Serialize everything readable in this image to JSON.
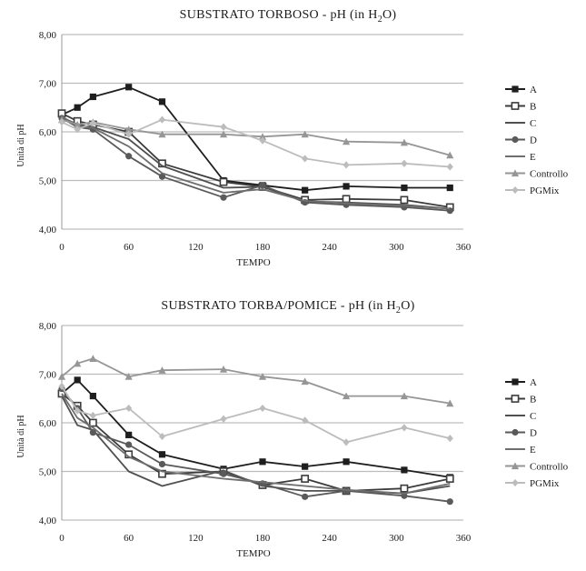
{
  "chart_data": [
    {
      "type": "line",
      "title": "SUBSTRATO TORBOSO - pH (in H",
      "title_sub": "2",
      "title_tail": "O)",
      "xlabel": "TEMPO",
      "ylabel": "Unità di pH",
      "ylim": [
        4,
        8
      ],
      "xlim": [
        0,
        360
      ],
      "y_ticks": [
        "4,00",
        "5,00",
        "6,00",
        "7,00",
        "8,00"
      ],
      "x_ticks": [
        "0",
        "60",
        "120",
        "180",
        "240",
        "300",
        "360"
      ],
      "grid": true,
      "legend_position": "right",
      "x": [
        0,
        14,
        28,
        60,
        90,
        145,
        180,
        218,
        255,
        307,
        348
      ],
      "series": [
        {
          "name": "A",
          "color": "#1e1e1e",
          "marker": "square",
          "values": [
            6.35,
            6.5,
            6.72,
            6.92,
            6.62,
            5.0,
            4.9,
            4.8,
            4.88,
            4.85,
            4.85
          ]
        },
        {
          "name": "B",
          "color": "#3c3c3c",
          "marker": "square-open",
          "values": [
            6.38,
            6.22,
            6.15,
            6.0,
            5.35,
            4.97,
            4.87,
            4.6,
            4.62,
            4.6,
            4.45
          ]
        },
        {
          "name": "C",
          "color": "#505050",
          "marker": "none",
          "values": [
            6.3,
            6.15,
            6.1,
            5.85,
            5.3,
            4.85,
            4.87,
            4.57,
            4.55,
            4.5,
            4.42
          ]
        },
        {
          "name": "D",
          "color": "#5a5a5a",
          "marker": "circle",
          "values": [
            6.28,
            6.1,
            6.05,
            5.5,
            5.08,
            4.65,
            4.9,
            4.55,
            4.5,
            4.45,
            4.38
          ]
        },
        {
          "name": "E",
          "color": "#6e6e6e",
          "marker": "none",
          "values": [
            6.32,
            6.12,
            6.08,
            5.7,
            5.15,
            4.75,
            4.82,
            4.58,
            4.53,
            4.48,
            4.42
          ]
        },
        {
          "name": "Controllo",
          "color": "#969696",
          "marker": "triangle",
          "values": [
            6.25,
            6.15,
            6.2,
            6.05,
            5.95,
            5.95,
            5.9,
            5.95,
            5.8,
            5.78,
            5.52
          ]
        },
        {
          "name": "PGMix",
          "color": "#bcbcbc",
          "marker": "diamond",
          "values": [
            6.2,
            6.05,
            6.18,
            5.95,
            6.25,
            6.1,
            5.82,
            5.45,
            5.32,
            5.35,
            5.28
          ]
        }
      ]
    },
    {
      "type": "line",
      "title": "SUBSTRATO TORBA/POMICE - pH (in H",
      "title_sub": "2",
      "title_tail": "O)",
      "xlabel": "TEMPO",
      "ylabel": "Unità di pH",
      "ylim": [
        4,
        8
      ],
      "xlim": [
        0,
        360
      ],
      "y_ticks": [
        "4,00",
        "5,00",
        "6,00",
        "7,00",
        "8,00"
      ],
      "x_ticks": [
        "0",
        "60",
        "120",
        "180",
        "240",
        "300",
        "360"
      ],
      "grid": true,
      "legend_position": "right",
      "x": [
        0,
        14,
        28,
        60,
        90,
        145,
        180,
        218,
        255,
        307,
        348
      ],
      "series": [
        {
          "name": "A",
          "color": "#1e1e1e",
          "marker": "square",
          "values": [
            6.6,
            6.88,
            6.55,
            5.75,
            5.35,
            5.05,
            5.2,
            5.1,
            5.2,
            5.03,
            4.88
          ]
        },
        {
          "name": "B",
          "color": "#3c3c3c",
          "marker": "square-open",
          "values": [
            6.6,
            6.35,
            6.0,
            5.35,
            4.95,
            5.0,
            4.72,
            4.85,
            4.6,
            4.65,
            4.85
          ]
        },
        {
          "name": "C",
          "color": "#505050",
          "marker": "none",
          "values": [
            6.55,
            5.95,
            5.85,
            5.0,
            4.7,
            5.02,
            4.7,
            4.6,
            4.6,
            4.55,
            4.7
          ]
        },
        {
          "name": "D",
          "color": "#5a5a5a",
          "marker": "circle",
          "values": [
            6.7,
            6.3,
            5.8,
            5.55,
            5.15,
            4.95,
            4.75,
            4.48,
            4.6,
            4.5,
            4.38
          ]
        },
        {
          "name": "E",
          "color": "#6e6e6e",
          "marker": "none",
          "values": [
            6.6,
            6.1,
            5.9,
            5.3,
            5.0,
            4.85,
            4.78,
            4.7,
            4.62,
            4.55,
            4.75
          ]
        },
        {
          "name": "Controllo",
          "color": "#969696",
          "marker": "triangle",
          "values": [
            6.95,
            7.22,
            7.32,
            6.95,
            7.08,
            7.1,
            6.95,
            6.85,
            6.55,
            6.55,
            6.4
          ]
        },
        {
          "name": "PGMix",
          "color": "#bcbcbc",
          "marker": "diamond",
          "values": [
            6.75,
            6.25,
            6.15,
            6.3,
            5.72,
            6.08,
            6.3,
            6.05,
            5.6,
            5.9,
            5.68
          ]
        }
      ]
    }
  ]
}
